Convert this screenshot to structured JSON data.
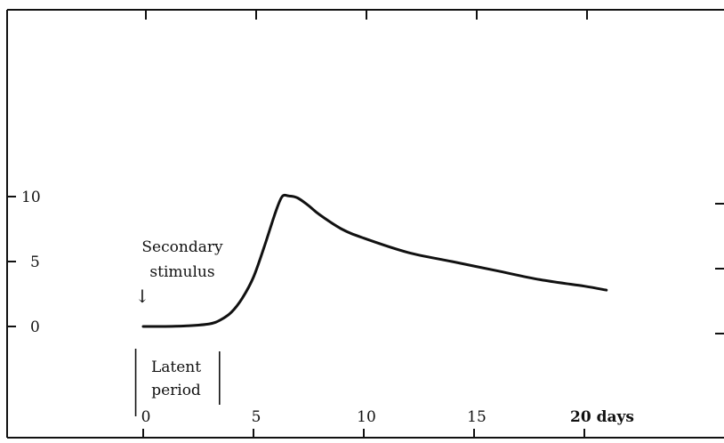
{
  "chart_data": {
    "type": "line",
    "x_tick_labels": [
      "0",
      "5",
      "10",
      "15",
      "20 days"
    ],
    "y_tick_labels": [
      "0",
      "5",
      "10"
    ],
    "xlim": [
      -6.5,
      27
    ],
    "ylim": [
      -3.5,
      13.2
    ],
    "series": [
      {
        "x": [
          0,
          1,
          2,
          3,
          3.5,
          4,
          4.5,
          5,
          5.5,
          6,
          6.3,
          6.6,
          7,
          7.5,
          8,
          9,
          10,
          12,
          14,
          16,
          18,
          20,
          21
        ],
        "y": [
          0,
          0,
          0.05,
          0.2,
          0.5,
          1.1,
          2.2,
          3.8,
          6.2,
          8.8,
          10,
          10.05,
          9.9,
          9.3,
          8.6,
          7.5,
          6.8,
          5.7,
          5.0,
          4.3,
          3.6,
          3.1,
          2.8
        ]
      }
    ],
    "annotations": {
      "stimulus_line1": "Secondary",
      "stimulus_line2": "stimulus",
      "stimulus_arrow": "↓",
      "latent_line1": "Latent",
      "latent_line2": "period",
      "stimulus_day": 0,
      "latent_start_day": -0.3,
      "latent_end_day": 3.5
    },
    "grid": false,
    "axes_color": "#111111"
  }
}
